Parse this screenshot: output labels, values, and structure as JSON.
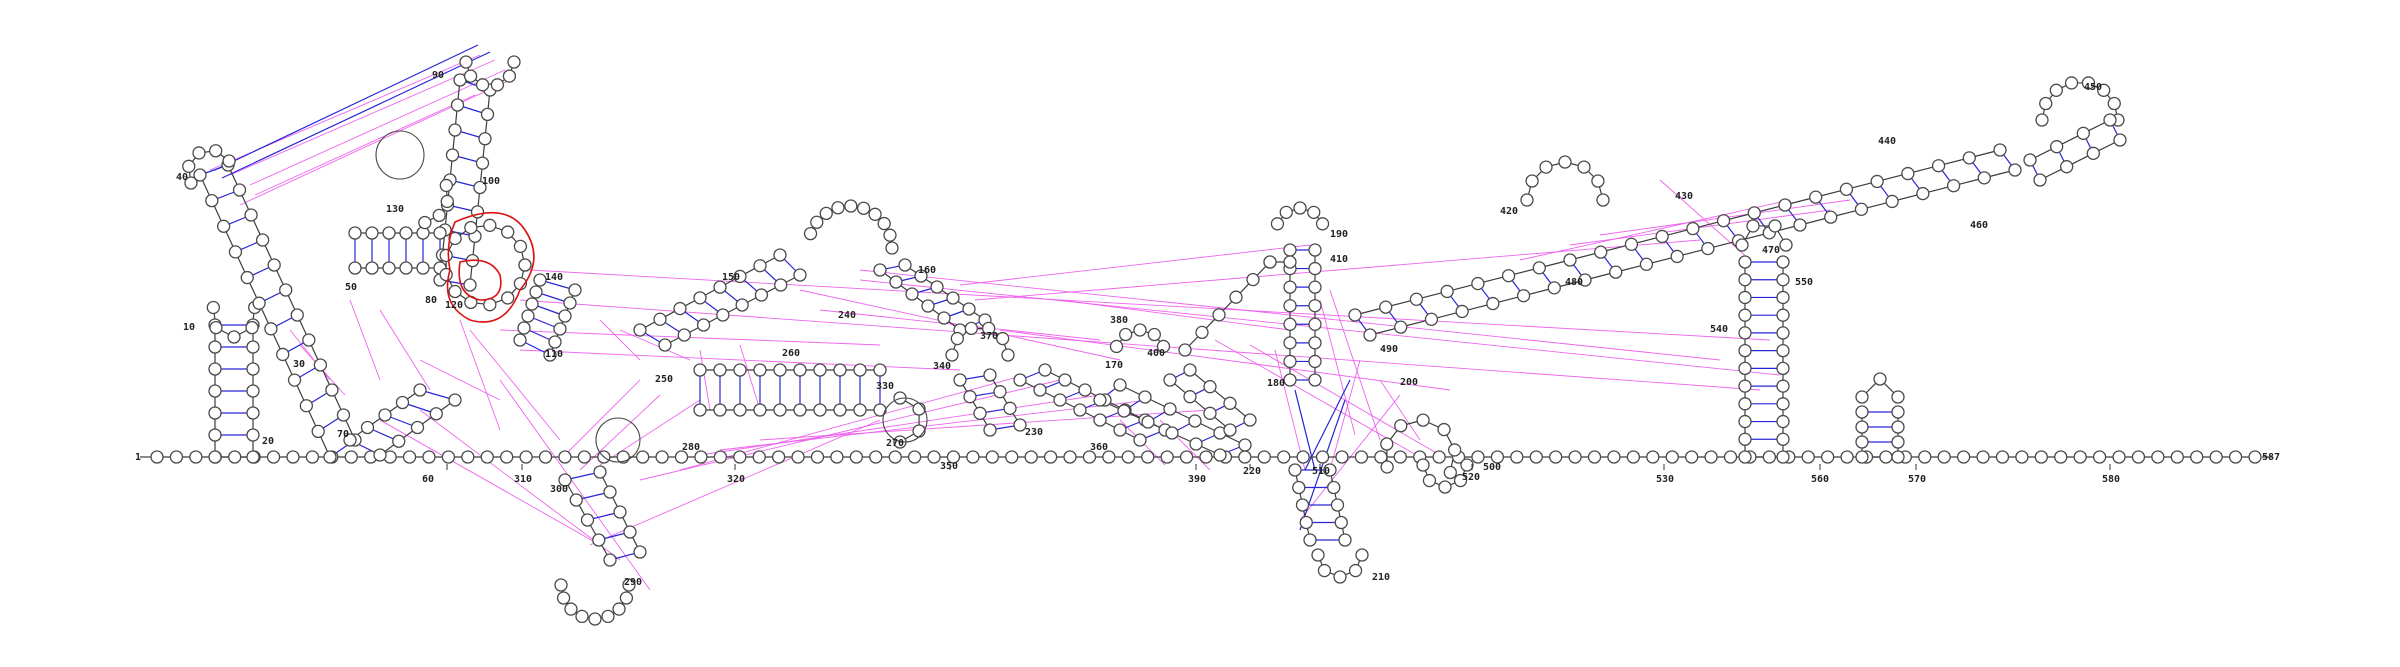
{
  "sequence_length": 587,
  "labels": [
    "1",
    "10",
    "20",
    "30",
    "40",
    "50",
    "60",
    "70",
    "80",
    "90",
    "100",
    "110",
    "120",
    "130",
    "140",
    "150",
    "160",
    "170",
    "180",
    "190",
    "200",
    "210",
    "220",
    "230",
    "240",
    "250",
    "260",
    "270",
    "280",
    "290",
    "300",
    "310",
    "320",
    "330",
    "340",
    "350",
    "360",
    "370",
    "380",
    "390",
    "400",
    "410",
    "420",
    "430",
    "440",
    "450",
    "460",
    "470",
    "480",
    "490",
    "500",
    "510",
    "520",
    "530",
    "540",
    "550",
    "560",
    "570",
    "580",
    "587"
  ],
  "colors": {
    "backbone": "#3c3c3c",
    "base_pair": "#2626d6",
    "tertiary": "#ee5cee",
    "highlight": "#dd1111",
    "node_fill": "#ffffff"
  }
}
